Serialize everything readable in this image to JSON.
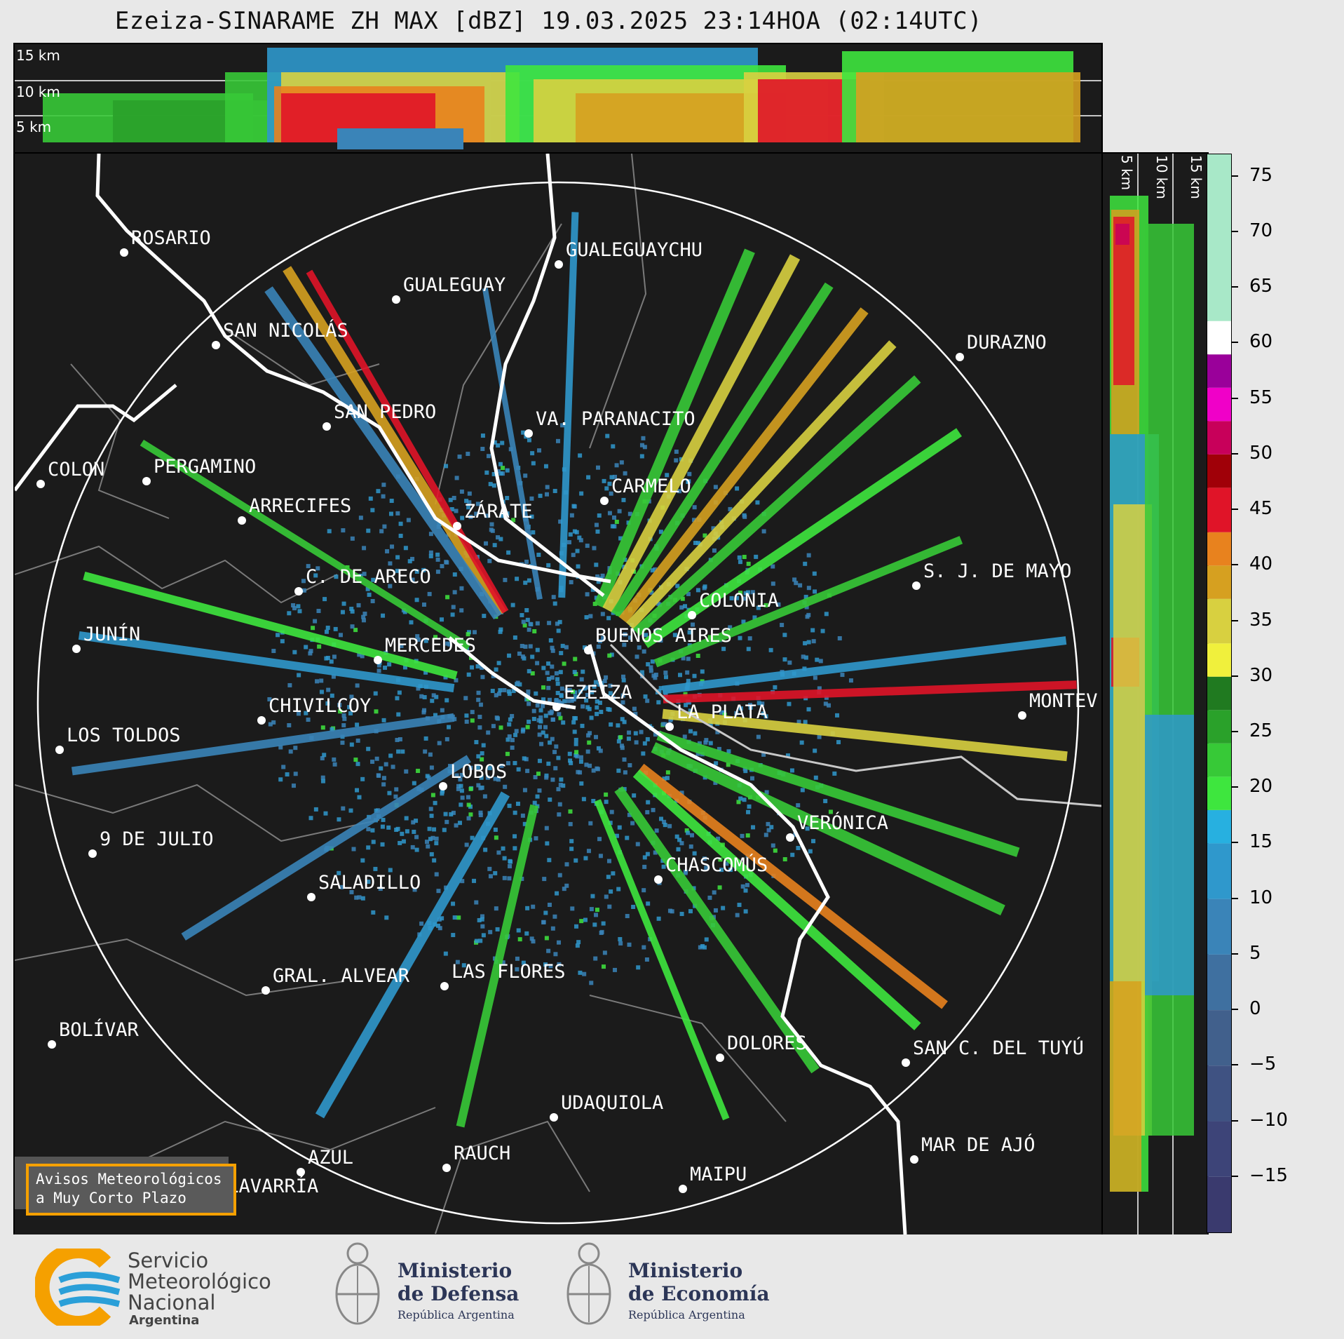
{
  "title": "Ezeiza-SINARAME ZH MAX [dBZ] 19.03.2025 23:14HOA (02:14UTC)",
  "top_altitudes": [
    "15 km",
    "10 km",
    "5 km"
  ],
  "side_altitudes": [
    "5 km",
    "10 km",
    "15 km"
  ],
  "colorbar": {
    "ticks": [
      "75",
      "70",
      "65",
      "60",
      "55",
      "50",
      "45",
      "40",
      "35",
      "30",
      "25",
      "20",
      "15",
      "10",
      "5",
      "0",
      "−5",
      "−10",
      "−15"
    ],
    "bands": [
      {
        "from": -20,
        "to": -15,
        "color": "#3a3a6e"
      },
      {
        "from": -15,
        "to": -10,
        "color": "#3d4478"
      },
      {
        "from": -10,
        "to": -5,
        "color": "#3f5282"
      },
      {
        "from": -5,
        "to": 0,
        "color": "#41608c"
      },
      {
        "from": 0,
        "to": 5,
        "color": "#3f70a0"
      },
      {
        "from": 5,
        "to": 10,
        "color": "#3a84b8"
      },
      {
        "from": 10,
        "to": 15,
        "color": "#2f98cc"
      },
      {
        "from": 15,
        "to": 18,
        "color": "#27b0e0"
      },
      {
        "from": 18,
        "to": 21,
        "color": "#3ee63e"
      },
      {
        "from": 21,
        "to": 24,
        "color": "#37c937"
      },
      {
        "from": 24,
        "to": 27,
        "color": "#2aa12a"
      },
      {
        "from": 27,
        "to": 30,
        "color": "#207a20"
      },
      {
        "from": 30,
        "to": 33,
        "color": "#f0f03c"
      },
      {
        "from": 33,
        "to": 37,
        "color": "#d8d040"
      },
      {
        "from": 37,
        "to": 40,
        "color": "#d6a020"
      },
      {
        "from": 40,
        "to": 43,
        "color": "#e8821e"
      },
      {
        "from": 43,
        "to": 47,
        "color": "#e01428"
      },
      {
        "from": 47,
        "to": 50,
        "color": "#a00008"
      },
      {
        "from": 50,
        "to": 53,
        "color": "#c8005a"
      },
      {
        "from": 53,
        "to": 56,
        "color": "#f000c8"
      },
      {
        "from": 56,
        "to": 59,
        "color": "#9a009a"
      },
      {
        "from": 59,
        "to": 62,
        "color": "#ffffff"
      },
      {
        "from": 62,
        "to": 77,
        "color": "#a8e8c8"
      }
    ]
  },
  "cities": [
    {
      "name": "ROSARIO",
      "lon": 175,
      "lat": 358
    },
    {
      "name": "GUALEGUAYCHU",
      "lon": 795,
      "lat": 375
    },
    {
      "name": "GUALEGUAY",
      "lon": 563,
      "lat": 425
    },
    {
      "name": "SAN NICOLÁS",
      "lon": 306,
      "lat": 490
    },
    {
      "name": "DURAZNO",
      "lon": 1367,
      "lat": 507
    },
    {
      "name": "SAN PEDRO",
      "lon": 464,
      "lat": 606
    },
    {
      "name": "VA. PARANACITO",
      "lon": 752,
      "lat": 616
    },
    {
      "name": "COLON",
      "lon": 56,
      "lat": 688
    },
    {
      "name": "PERGAMINO",
      "lon": 207,
      "lat": 684
    },
    {
      "name": "CARMELO",
      "lon": 860,
      "lat": 712
    },
    {
      "name": "ARRECIFES",
      "lon": 343,
      "lat": 740
    },
    {
      "name": "ZÁRATE",
      "lon": 650,
      "lat": 748
    },
    {
      "name": "S. J. DE MAYO",
      "lon": 1305,
      "lat": 833
    },
    {
      "name": "C. DE ARECO",
      "lon": 424,
      "lat": 841
    },
    {
      "name": "COLONIA",
      "lon": 985,
      "lat": 875
    },
    {
      "name": "JUNÍN",
      "lon": 107,
      "lat": 923
    },
    {
      "name": "BUENOS AIRES",
      "lon": 837,
      "lat": 925
    },
    {
      "name": "MERCEDES",
      "lon": 537,
      "lat": 939
    },
    {
      "name": "EZEIZA",
      "lon": 792,
      "lat": 1006
    },
    {
      "name": "MONTEV",
      "lon": 1456,
      "lat": 1018
    },
    {
      "name": "CHIVILCOY",
      "lon": 371,
      "lat": 1025
    },
    {
      "name": "LA PLATA",
      "lon": 953,
      "lat": 1034
    },
    {
      "name": "LOS TOLDOS",
      "lon": 83,
      "lat": 1067
    },
    {
      "name": "LOBOS",
      "lon": 630,
      "lat": 1119
    },
    {
      "name": "VERÓNICA",
      "lon": 1125,
      "lat": 1192
    },
    {
      "name": "9 DE JULIO",
      "lon": 130,
      "lat": 1215
    },
    {
      "name": "CHASCOMÚS",
      "lon": 937,
      "lat": 1252
    },
    {
      "name": "SALADILLO",
      "lon": 442,
      "lat": 1277
    },
    {
      "name": "GRAL. ALVEAR",
      "lon": 377,
      "lat": 1410
    },
    {
      "name": "LAS FLORES",
      "lon": 632,
      "lat": 1404
    },
    {
      "name": "BOLÍVAR",
      "lon": 72,
      "lat": 1487
    },
    {
      "name": "DOLORES",
      "lon": 1025,
      "lat": 1506
    },
    {
      "name": "SAN C. DEL TUYÚ",
      "lon": 1290,
      "lat": 1513
    },
    {
      "name": "UDAQUIOLA",
      "lon": 788,
      "lat": 1591
    },
    {
      "name": "MAR DE AJÓ",
      "lon": 1302,
      "lat": 1651
    },
    {
      "name": "AZUL",
      "lon": 427,
      "lat": 1669
    },
    {
      "name": "RAUCH",
      "lon": 635,
      "lat": 1663
    },
    {
      "name": "MAIPU",
      "lon": 972,
      "lat": 1693
    },
    {
      "name": "OLAVARRÍA",
      "lon": 296,
      "lat": 1710
    }
  ],
  "aviso": {
    "line1": "Avisos Meteorológicos",
    "line2": "a Muy Corto Plazo"
  },
  "footer": {
    "smn_line1": "Servicio",
    "smn_line2": "Meteorológico",
    "smn_line3": "Nacional",
    "smn_line4": "Argentina",
    "defensa_line1": "Ministerio",
    "defensa_line2": "de Defensa",
    "defensa_sub": "República Argentina",
    "economia_line1": "Ministerio",
    "economia_line2": "de Economía",
    "economia_sub": "República Argentina"
  },
  "colors": {
    "background": "#1b1b1b",
    "range_ring": "#ffffff",
    "river": "#ffffff",
    "border": "#8a8a8a",
    "aviso_border": "#f5a000",
    "smn_orange": "#f5a000",
    "smn_blue": "#2a9fd8"
  }
}
